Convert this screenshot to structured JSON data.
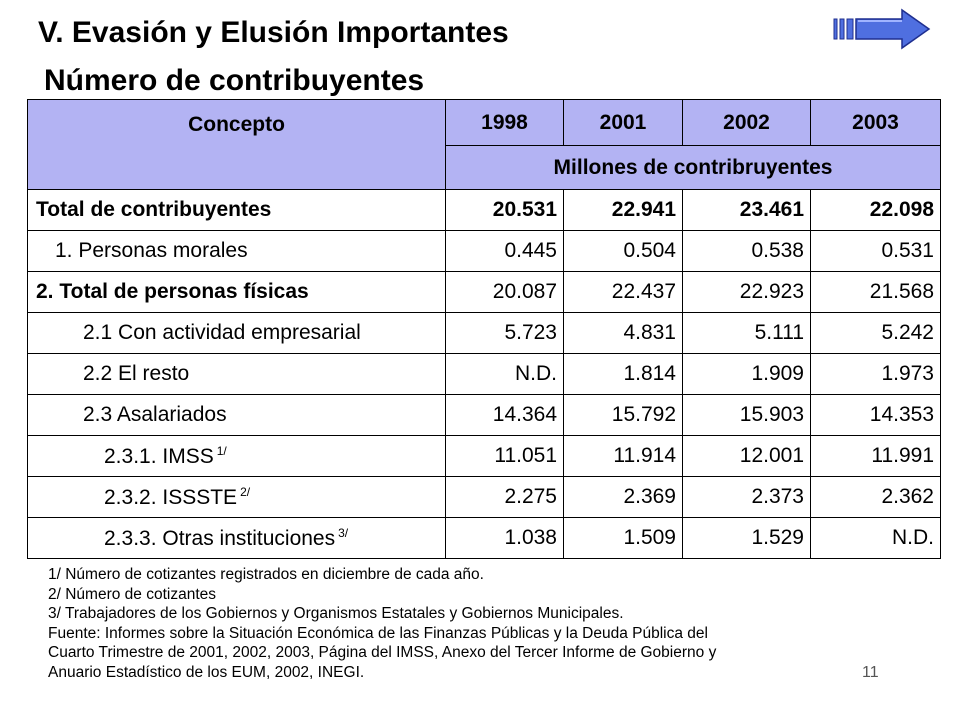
{
  "slide": {
    "title": "V. Evasión y Elusión Importantes",
    "subtitle": "Número de contribuyentes",
    "page_number": "11"
  },
  "nav": {
    "icon": "forward-arrow-icon",
    "color": "#4f6fe0"
  },
  "colors": {
    "header_bg": "#b3b3f3"
  },
  "table": {
    "header": {
      "concept": "Concepto",
      "years": [
        "1998",
        "2001",
        "2002",
        "2003"
      ],
      "units": "Millones de contribruyentes"
    },
    "rows": [
      {
        "label": "Total de contribuyentes",
        "footnote": "",
        "values": [
          "20.531",
          "22.941",
          "23.461",
          "22.098"
        ]
      },
      {
        "label": "1. Personas morales",
        "footnote": "",
        "values": [
          "0.445",
          "0.504",
          "0.538",
          "0.531"
        ]
      },
      {
        "label": "2. Total de personas físicas",
        "footnote": "",
        "values": [
          "20.087",
          "22.437",
          "22.923",
          "21.568"
        ]
      },
      {
        "label": "2.1 Con actividad empresarial",
        "footnote": "",
        "values": [
          "5.723",
          "4.831",
          "5.111",
          "5.242"
        ]
      },
      {
        "label": "2.2 El resto",
        "footnote": "",
        "values": [
          "N.D.",
          "1.814",
          "1.909",
          "1.973"
        ]
      },
      {
        "label": "2.3 Asalariados",
        "footnote": "",
        "values": [
          "14.364",
          "15.792",
          "15.903",
          "14.353"
        ]
      },
      {
        "label": "2.3.1. IMSS",
        "footnote": "1/",
        "values": [
          "11.051",
          "11.914",
          "12.001",
          "11.991"
        ]
      },
      {
        "label": "2.3.2. ISSSTE",
        "footnote": "2/",
        "values": [
          "2.275",
          "2.369",
          "2.373",
          "2.362"
        ]
      },
      {
        "label": "2.3.3. Otras instituciones",
        "footnote": "3/",
        "values": [
          "1.038",
          "1.509",
          "1.529",
          "N.D."
        ]
      }
    ]
  },
  "notes": [
    "1/ Número de cotizantes registrados en diciembre de cada año.",
    "2/ Número de cotizantes",
    "3/ Trabajadores de los Gobiernos y Organismos Estatales y Gobiernos Municipales.",
    "Fuente: Informes sobre la Situación Económica de las Finanzas Públicas y la Deuda Pública del",
    "Cuarto Trimestre de 2001, 2002, 2003, Página del IMSS, Anexo del Tercer Informe de Gobierno y",
    "Anuario Estadístico de los EUM, 2002, INEGI."
  ]
}
